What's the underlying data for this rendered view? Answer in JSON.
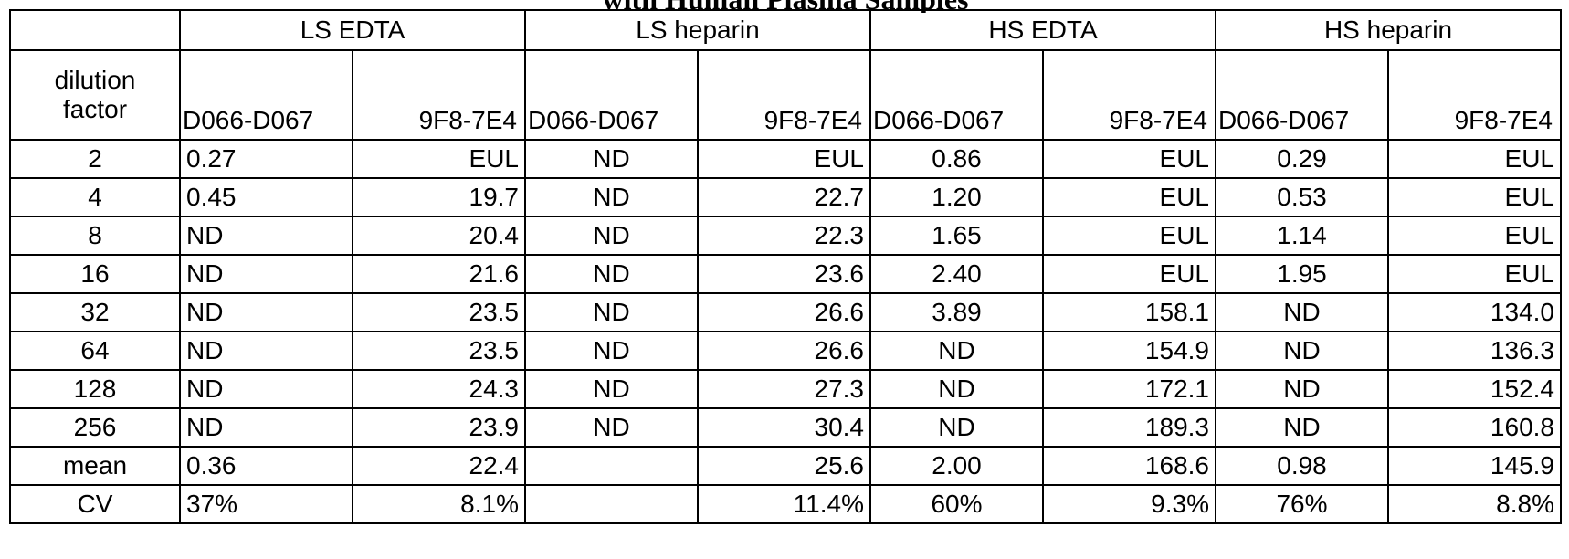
{
  "title_fragment": "with Human Plasma Samples",
  "header": {
    "groups": [
      "LS EDTA",
      "LS heparin",
      "HS EDTA",
      "HS heparin"
    ],
    "dilution_label_line1": "dilution",
    "dilution_label_line2": "factor",
    "subheaders": [
      "D066-D067",
      "9F8-7E4",
      "D066-D067",
      "9F8-7E4",
      "D066-D067",
      "9F8-7E4",
      "D066-D067",
      "9F8-7E4"
    ]
  },
  "rows": [
    {
      "label": "2",
      "values": [
        "0.27",
        "EUL",
        "ND",
        "EUL",
        "0.86",
        "EUL",
        "0.29",
        "EUL"
      ]
    },
    {
      "label": "4",
      "values": [
        "0.45",
        "19.7",
        "ND",
        "22.7",
        "1.20",
        "EUL",
        "0.53",
        "EUL"
      ]
    },
    {
      "label": "8",
      "values": [
        "ND",
        "20.4",
        "ND",
        "22.3",
        "1.65",
        "EUL",
        "1.14",
        "EUL"
      ]
    },
    {
      "label": "16",
      "values": [
        "ND",
        "21.6",
        "ND",
        "23.6",
        "2.40",
        "EUL",
        "1.95",
        "EUL"
      ]
    },
    {
      "label": "32",
      "values": [
        "ND",
        "23.5",
        "ND",
        "26.6",
        "3.89",
        "158.1",
        "ND",
        "134.0"
      ]
    },
    {
      "label": "64",
      "values": [
        "ND",
        "23.5",
        "ND",
        "26.6",
        "ND",
        "154.9",
        "ND",
        "136.3"
      ]
    },
    {
      "label": "128",
      "values": [
        "ND",
        "24.3",
        "ND",
        "27.3",
        "ND",
        "172.1",
        "ND",
        "152.4"
      ]
    },
    {
      "label": "256",
      "values": [
        "ND",
        "23.9",
        "ND",
        "30.4",
        "ND",
        "189.3",
        "ND",
        "160.8"
      ]
    },
    {
      "label": "mean",
      "values": [
        "0.36",
        "22.4",
        "",
        "25.6",
        "2.00",
        "168.6",
        "0.98",
        "145.9"
      ]
    },
    {
      "label": "CV",
      "values": [
        "37%",
        "8.1%",
        "",
        "11.4%",
        "60%",
        "9.3%",
        "76%",
        "8.8%"
      ]
    }
  ]
}
